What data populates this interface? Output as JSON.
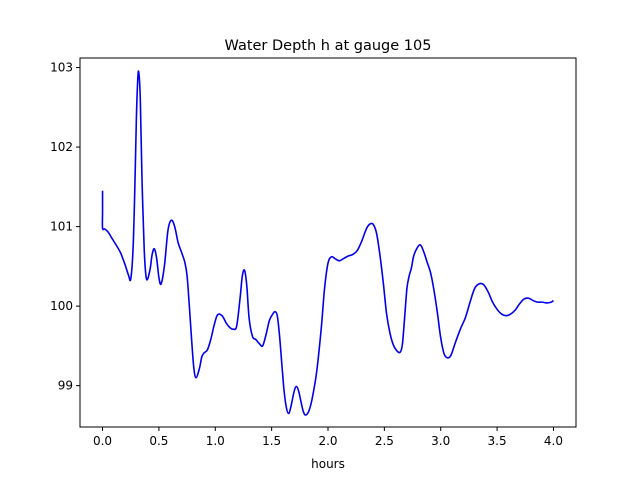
{
  "chart_data": {
    "type": "line",
    "title": "Water Depth h at gauge 105",
    "xlabel": "hours",
    "ylabel": "",
    "xlim": [
      -0.2,
      4.2
    ],
    "ylim": [
      98.48,
      103.12
    ],
    "xticks": [
      0.0,
      0.5,
      1.0,
      1.5,
      2.0,
      2.5,
      3.0,
      3.5,
      4.0
    ],
    "xtick_labels": [
      "0.0",
      "0.5",
      "1.0",
      "1.5",
      "2.0",
      "2.5",
      "3.0",
      "3.5",
      "4.0"
    ],
    "yticks": [
      99,
      100,
      101,
      102,
      103
    ],
    "ytick_labels": [
      "99",
      "100",
      "101",
      "102",
      "103"
    ],
    "grid": false,
    "series": [
      {
        "name": "",
        "color": "#0000ee",
        "x": [
          0.0,
          0.0,
          0.0,
          0.02,
          0.05,
          0.08,
          0.12,
          0.16,
          0.2,
          0.23,
          0.25,
          0.27,
          0.285,
          0.3,
          0.31,
          0.32,
          0.335,
          0.35,
          0.37,
          0.39,
          0.42,
          0.44,
          0.46,
          0.48,
          0.5,
          0.52,
          0.55,
          0.58,
          0.61,
          0.64,
          0.67,
          0.7,
          0.73,
          0.75,
          0.77,
          0.79,
          0.81,
          0.83,
          0.86,
          0.88,
          0.9,
          0.93,
          0.96,
          0.99,
          1.02,
          1.06,
          1.1,
          1.13,
          1.16,
          1.19,
          1.22,
          1.24,
          1.26,
          1.28,
          1.3,
          1.33,
          1.36,
          1.39,
          1.42,
          1.45,
          1.48,
          1.51,
          1.53,
          1.55,
          1.57,
          1.59,
          1.61,
          1.63,
          1.65,
          1.67,
          1.7,
          1.72,
          1.74,
          1.76,
          1.78,
          1.8,
          1.83,
          1.86,
          1.9,
          1.94,
          1.97,
          2.0,
          2.03,
          2.06,
          2.1,
          2.14,
          2.18,
          2.22,
          2.26,
          2.3,
          2.34,
          2.37,
          2.4,
          2.43,
          2.46,
          2.49,
          2.52,
          2.55,
          2.58,
          2.61,
          2.64,
          2.66,
          2.68,
          2.7,
          2.72,
          2.74,
          2.76,
          2.79,
          2.82,
          2.85,
          2.88,
          2.91,
          2.94,
          2.97,
          3.0,
          3.03,
          3.06,
          3.09,
          3.12,
          3.15,
          3.18,
          3.22,
          3.26,
          3.3,
          3.34,
          3.38,
          3.42,
          3.46,
          3.5,
          3.54,
          3.58,
          3.62,
          3.66,
          3.7,
          3.74,
          3.78,
          3.82,
          3.86,
          3.9,
          3.94,
          3.98,
          4.0
        ],
        "y": [
          101.45,
          101.2,
          100.98,
          100.97,
          100.93,
          100.86,
          100.77,
          100.67,
          100.52,
          100.39,
          100.34,
          100.7,
          101.4,
          102.35,
          102.78,
          102.95,
          102.6,
          101.6,
          100.7,
          100.34,
          100.45,
          100.65,
          100.72,
          100.6,
          100.36,
          100.28,
          100.52,
          100.95,
          101.08,
          101.0,
          100.8,
          100.68,
          100.55,
          100.38,
          100.0,
          99.58,
          99.22,
          99.1,
          99.22,
          99.36,
          99.41,
          99.45,
          99.58,
          99.76,
          99.89,
          99.88,
          99.78,
          99.73,
          99.71,
          99.75,
          100.1,
          100.38,
          100.45,
          100.25,
          99.85,
          99.62,
          99.58,
          99.53,
          99.5,
          99.64,
          99.82,
          99.9,
          99.93,
          99.88,
          99.63,
          99.28,
          98.94,
          98.73,
          98.65,
          98.73,
          98.93,
          98.99,
          98.93,
          98.8,
          98.68,
          98.63,
          98.68,
          98.84,
          99.18,
          99.72,
          100.23,
          100.54,
          100.62,
          100.6,
          100.57,
          100.6,
          100.63,
          100.65,
          100.7,
          100.82,
          100.97,
          101.03,
          101.03,
          100.92,
          100.65,
          100.3,
          99.9,
          99.66,
          99.51,
          99.44,
          99.42,
          99.52,
          99.86,
          100.22,
          100.38,
          100.48,
          100.63,
          100.73,
          100.77,
          100.68,
          100.55,
          100.42,
          100.2,
          99.92,
          99.6,
          99.4,
          99.35,
          99.38,
          99.5,
          99.62,
          99.73,
          99.86,
          100.05,
          100.22,
          100.28,
          100.27,
          100.18,
          100.05,
          99.96,
          99.9,
          99.88,
          99.9,
          99.95,
          100.03,
          100.09,
          100.1,
          100.07,
          100.05,
          100.05,
          100.04,
          100.05,
          100.07
        ]
      }
    ]
  }
}
